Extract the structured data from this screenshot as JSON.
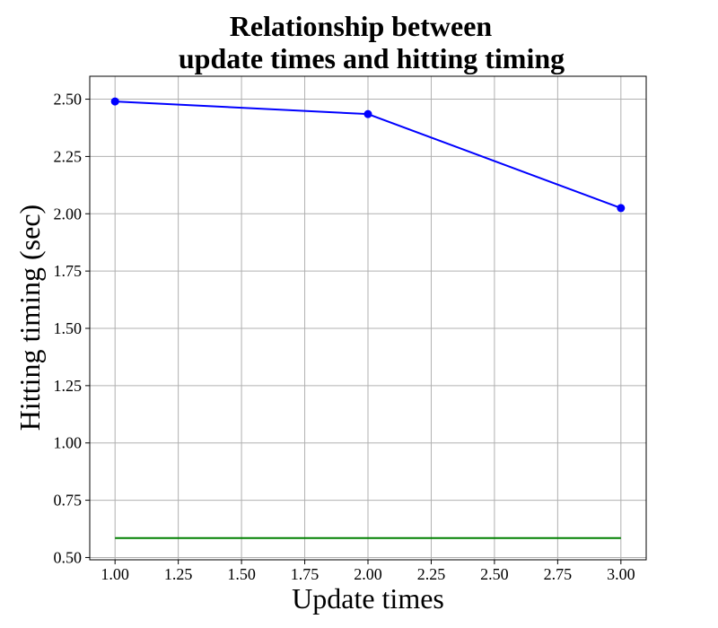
{
  "chart_data": {
    "type": "line",
    "title": "Relationship between\nupdate times and hitting timing",
    "title_lines": [
      "Relationship between",
      "update times and hitting timing"
    ],
    "xlabel": "Update times",
    "ylabel": "Hitting timing (sec)",
    "xlim": [
      0.9,
      3.1
    ],
    "ylim": [
      0.49,
      2.6
    ],
    "xticks": [
      1.0,
      1.25,
      1.5,
      1.75,
      2.0,
      2.25,
      2.5,
      2.75,
      3.0
    ],
    "xtick_labels": [
      "1.00",
      "1.25",
      "1.50",
      "1.75",
      "2.00",
      "2.25",
      "2.50",
      "2.75",
      "3.00"
    ],
    "yticks": [
      0.5,
      0.75,
      1.0,
      1.25,
      1.5,
      1.75,
      2.0,
      2.25,
      2.5
    ],
    "ytick_labels": [
      "0.50",
      "0.75",
      "1.00",
      "1.25",
      "1.50",
      "1.75",
      "2.00",
      "2.25",
      "2.50"
    ],
    "grid": true,
    "legend": "none",
    "series": [
      {
        "x": [
          1,
          2,
          3
        ],
        "values": [
          2.49,
          2.435,
          2.025
        ],
        "color": "#0000ff",
        "markers": true
      },
      {
        "x": [
          1,
          3
        ],
        "values": [
          0.585,
          0.585
        ],
        "color": "#008000",
        "markers": false
      }
    ],
    "colors": {
      "grid": "#b0b0b0",
      "axes": "#000000"
    }
  }
}
